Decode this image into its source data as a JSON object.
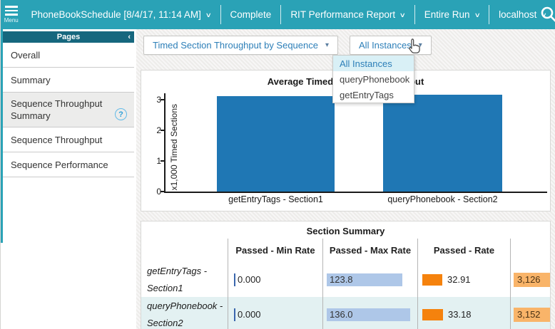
{
  "topbar": {
    "menu_label": "Menu",
    "schedule": "PhoneBookSchedule [8/4/17, 11:14 AM]",
    "status": "Complete",
    "report": "RIT Performance Report",
    "run": "Entire Run",
    "host": "localhost"
  },
  "sidebar": {
    "title": "Pages",
    "collapse_icon": "‹",
    "items": [
      {
        "label": "Overall",
        "selected": false,
        "help": false
      },
      {
        "label": "Summary",
        "selected": false,
        "help": false
      },
      {
        "label": "Sequence Throughput Summary",
        "selected": true,
        "help": true
      },
      {
        "label": "Sequence Throughput",
        "selected": false,
        "help": false
      },
      {
        "label": "Sequence Performance",
        "selected": false,
        "help": false
      }
    ]
  },
  "toolbar": {
    "metric_dropdown": {
      "value": "Timed Section Throughput by Sequence"
    },
    "instance_dropdown": {
      "value": "All Instances"
    }
  },
  "dropdown_menu": {
    "selected": "All Instances",
    "items": [
      "All Instances",
      "queryPhonebook",
      "getEntryTags"
    ]
  },
  "chart_data": {
    "type": "bar",
    "title": "Average Timed Section Throughput",
    "categories": [
      "getEntryTags - Section1",
      "queryPhonebook - Section2"
    ],
    "values": [
      3.126,
      3.152
    ],
    "xlabel": "",
    "ylabel": "x1,000 Timed Sections",
    "yticks": [
      0,
      1,
      2,
      3
    ],
    "ylim": [
      0,
      3.3
    ],
    "grid": false,
    "legend": "none",
    "bar_color": "#1f77b4"
  },
  "table": {
    "title": "Section Summary",
    "columns": [
      "",
      "Passed - Min Rate",
      "Passed - Max Rate",
      "Passed - Rate",
      "Pas"
    ],
    "rows": [
      {
        "label": "getEntryTags - Section1",
        "min_rate": "0.000",
        "max_rate": "123.8",
        "max_rate_num": 123.8,
        "rate": "32.91",
        "rate_num": 32.91,
        "count": "3,126"
      },
      {
        "label": "queryPhonebook - Section2",
        "min_rate": "0.000",
        "max_rate": "136.0",
        "max_rate_num": 136.0,
        "rate": "33.18",
        "rate_num": 33.18,
        "count": "3,152"
      }
    ]
  },
  "colors": {
    "topbar": "#2aa2b6",
    "pages_header": "#16677e",
    "link_blue": "#2d7fb8",
    "bar_blue": "#1f77b4",
    "max_rate_bar": "#aec7e8",
    "rate_bar": "#f5820d",
    "count_bar": "#f9b469",
    "row_alt_bg": "#e3f1f2",
    "selected_menu_bg": "#d9f0f6"
  }
}
